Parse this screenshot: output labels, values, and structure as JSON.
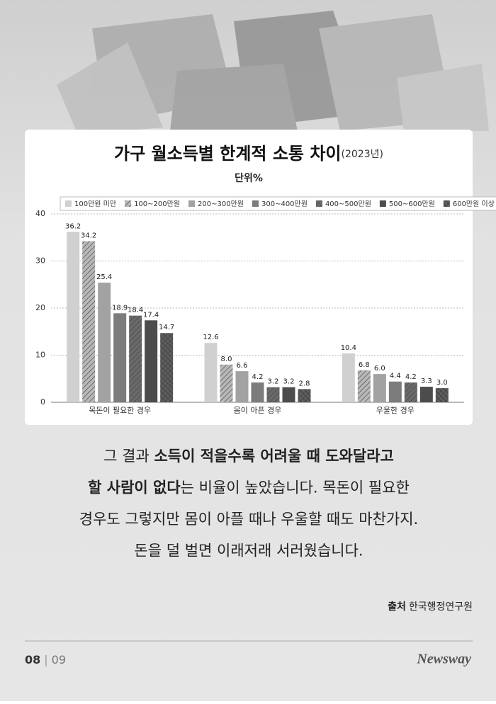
{
  "chart_data": {
    "type": "bar",
    "title": "가구 월소득별 한계적 소통 차이",
    "title_note": "(2023년)",
    "subtitle": "단위%",
    "categories": [
      "목돈이 필요한 경우",
      "몸이 아픈 경우",
      "우울한 경우"
    ],
    "series": [
      {
        "name": "100만원 미만",
        "color": "#d0d0d0",
        "pattern": "solid",
        "values": [
          36.2,
          12.6,
          10.4
        ],
        "value_labels": [
          "36.2",
          "12.6",
          "10.4"
        ]
      },
      {
        "name": "100~200만원",
        "color": "#b8b8b8",
        "pattern": "hatch",
        "values": [
          34.2,
          8.0,
          6.8
        ],
        "value_labels": [
          "34.2",
          "8.0",
          "6.8"
        ]
      },
      {
        "name": "200~300만원",
        "color": "#a2a2a2",
        "pattern": "solid",
        "values": [
          25.4,
          6.6,
          6.0
        ],
        "value_labels": [
          "25.4",
          "6.6",
          "6.0"
        ]
      },
      {
        "name": "300~400만원",
        "color": "#7c7c7c",
        "pattern": "solid",
        "values": [
          18.9,
          4.2,
          4.4
        ],
        "value_labels": [
          "18.9",
          "4.2",
          "4.4"
        ]
      },
      {
        "name": "400~500만원",
        "color": "#6a6a6a",
        "pattern": "hatch",
        "values": [
          18.4,
          3.2,
          4.2
        ],
        "value_labels": [
          "18.4",
          "3.2",
          "4.2"
        ]
      },
      {
        "name": "500~600만원",
        "color": "#4c4c4c",
        "pattern": "solid",
        "values": [
          17.4,
          3.2,
          3.3
        ],
        "value_labels": [
          "17.4",
          "3.2",
          "3.3"
        ]
      },
      {
        "name": "600만원 이상",
        "color": "#5e5e5e",
        "pattern": "cross",
        "values": [
          14.7,
          2.8,
          3.0
        ],
        "value_labels": [
          "14.7",
          "2.8",
          "3.0"
        ]
      }
    ],
    "ylim": [
      0,
      40
    ],
    "yticks": [
      0,
      10,
      20,
      30,
      40
    ],
    "grid": true
  },
  "body": [
    [
      {
        "text": "그 결과 "
      },
      {
        "text": "소득이 적을수록 어려울 때 도와달라고",
        "bold": true
      }
    ],
    [
      {
        "text": "할 사람이 없다",
        "bold": true
      },
      {
        "text": "는 비율이 높았습니다. 목돈이 필요한"
      }
    ],
    [
      {
        "text": "경우도 그렇지만 몸이 아플 때나 우울할 때도 마찬가지."
      }
    ],
    [
      {
        "text": "돈을 덜 벌면 이래저래 서러웠습니다."
      }
    ]
  ],
  "source": {
    "label": "출처",
    "text": "한국행정연구원"
  },
  "footer": {
    "page": "08",
    "separator": "|",
    "total": "09",
    "brand": "Newsway"
  }
}
